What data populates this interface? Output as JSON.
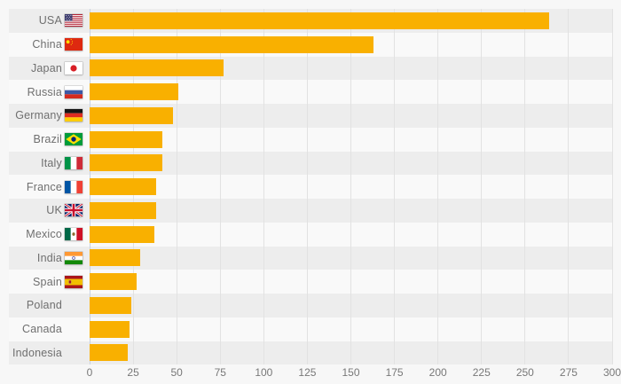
{
  "chart_data": {
    "type": "bar",
    "orientation": "horizontal",
    "title": "",
    "xlabel": "",
    "ylabel": "",
    "xlim": [
      0,
      300
    ],
    "xticks": [
      0,
      25,
      50,
      75,
      100,
      125,
      150,
      175,
      200,
      225,
      250,
      275,
      300
    ],
    "grid": "vertical gridlines every 25, zero line highlighted",
    "legend": false,
    "row_striping": "alternating, first row dark",
    "categories": [
      "USA",
      "China",
      "Japan",
      "Russia",
      "Germany",
      "Brazil",
      "Italy",
      "France",
      "UK",
      "Mexico",
      "India",
      "Spain",
      "Poland",
      "Canada",
      "Indonesia"
    ],
    "values": [
      264,
      163,
      77,
      51,
      48,
      42,
      42,
      38,
      38,
      37,
      29,
      27,
      24,
      23,
      22
    ],
    "flags": [
      "usa",
      "china",
      "japan",
      "russia",
      "germany",
      "brazil",
      "italy",
      "france",
      "uk",
      "mexico",
      "india",
      "spain",
      null,
      null,
      null
    ]
  },
  "colors": {
    "background": "#F7F7F7",
    "row_stripe_dark": "#EDEDED",
    "row_stripe_light": "#F9F9F9",
    "gridline": "#E2E2E2",
    "zero_axis_line": "#C8D2E2",
    "label_text": "#6F6F6F",
    "tick_text": "#787878",
    "bar": "#F9B000"
  }
}
